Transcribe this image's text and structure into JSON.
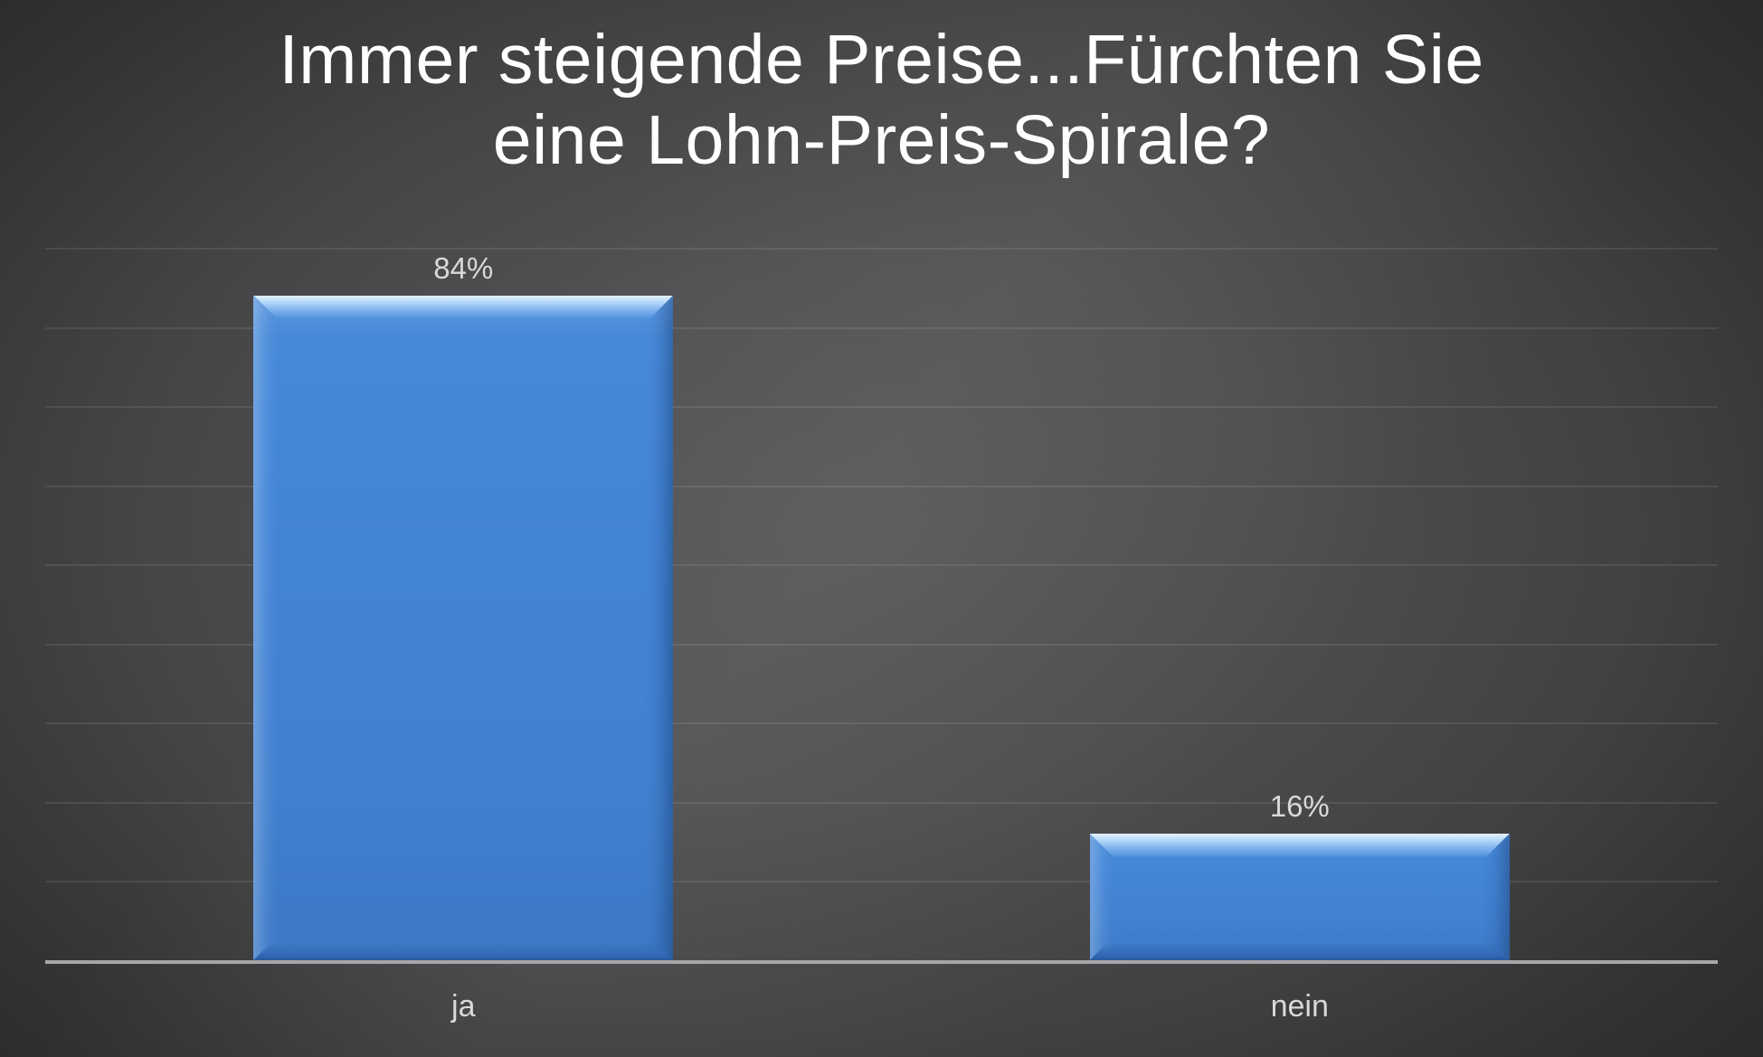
{
  "slide": {
    "title_lines": [
      "Immer steigende Preise...Fürchten Sie",
      "eine Lohn-Preis-Spirale?"
    ]
  },
  "chart_data": {
    "type": "bar",
    "title": "Immer steigende Preise...Fürchten Sie eine Lohn-Preis-Spirale?",
    "categories": [
      "ja",
      "nein"
    ],
    "values": [
      84,
      16
    ],
    "value_labels": [
      "84%",
      "16%"
    ],
    "xlabel": "",
    "ylabel": "",
    "ylim": [
      0,
      90
    ],
    "gridline_step": 10,
    "grid": true,
    "legend": false,
    "colors": {
      "bar_fill": "#4285d6",
      "bar_bevel_highlight": "#cde6fc",
      "bar_bevel_shadow": "#2a5a9e",
      "gridline": "rgba(255,255,255,0.09)",
      "axis_line": "#a6a6a6",
      "data_label": "#d9d9d9",
      "title": "#ffffff",
      "background_center": "#59595b",
      "background_edge": "#242426"
    }
  }
}
